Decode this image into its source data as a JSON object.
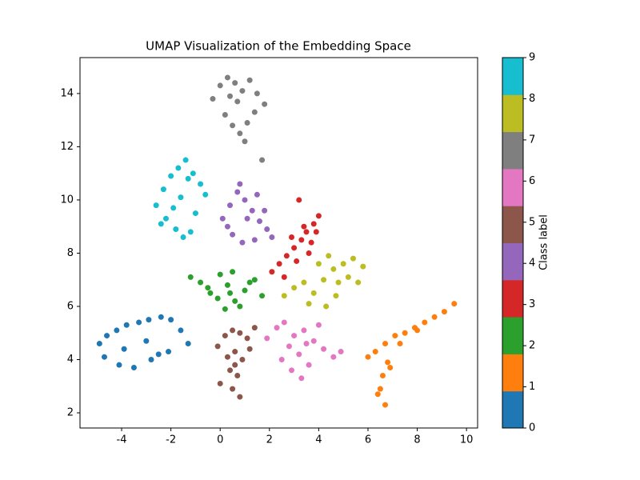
{
  "chart_data": {
    "type": "scatter",
    "title": "UMAP Visualization of the Embedding Space",
    "xlim": [
      -5.69,
      10.45
    ],
    "xticks": [
      -4,
      -2,
      0,
      2,
      4,
      6,
      8,
      10
    ],
    "ylim": [
      1.43,
      15.35
    ],
    "yticks": [
      2,
      4,
      6,
      8,
      10,
      12,
      14
    ],
    "colorbar": {
      "label": "Class label",
      "lim": [
        0,
        9
      ],
      "ticks": [
        0,
        1,
        2,
        3,
        4,
        5,
        6,
        7,
        8,
        9
      ]
    },
    "series": [
      {
        "color": "#1f77b4",
        "x": [
          -4.9,
          -4.6,
          -4.2,
          -3.8,
          -3.3,
          -2.9,
          -2.4,
          -2.0,
          -1.6,
          -1.3,
          -2.1,
          -2.8,
          -3.5,
          -4.1,
          -4.7,
          -3.9,
          -3.0,
          -2.5
        ],
        "values": [
          4.6,
          4.9,
          5.1,
          5.3,
          5.4,
          5.5,
          5.6,
          5.5,
          5.1,
          4.6,
          4.3,
          4.0,
          3.7,
          3.8,
          4.1,
          4.4,
          4.7,
          4.2
        ]
      },
      {
        "color": "#ff7f0e",
        "x": [
          6.0,
          6.3,
          6.7,
          7.1,
          7.5,
          7.9,
          8.3,
          8.7,
          9.1,
          9.5,
          6.8,
          6.6,
          6.5,
          6.7,
          6.4,
          7.3,
          8.0,
          6.9
        ],
        "values": [
          4.1,
          4.3,
          4.6,
          4.9,
          5.0,
          5.2,
          5.4,
          5.6,
          5.8,
          6.1,
          3.9,
          3.4,
          2.9,
          2.3,
          2.7,
          4.6,
          5.1,
          3.7
        ]
      },
      {
        "color": "#2ca02c",
        "x": [
          -1.2,
          -0.8,
          -0.4,
          0.0,
          0.3,
          0.6,
          1.0,
          1.4,
          1.7,
          0.2,
          0.5,
          0.8,
          -0.5,
          0.4,
          1.2,
          -0.1
        ],
        "values": [
          7.1,
          6.9,
          6.5,
          7.2,
          6.8,
          6.2,
          6.6,
          7.0,
          6.4,
          5.9,
          7.3,
          6.0,
          6.7,
          6.5,
          6.9,
          6.3
        ]
      },
      {
        "color": "#d62728",
        "x": [
          2.1,
          2.4,
          2.7,
          3.0,
          3.3,
          3.5,
          3.8,
          4.0,
          2.6,
          3.1,
          3.6,
          3.2,
          2.9,
          3.4,
          3.7,
          3.9
        ],
        "values": [
          7.3,
          7.6,
          7.9,
          8.2,
          8.5,
          8.8,
          9.1,
          9.4,
          7.1,
          7.7,
          8.0,
          10.0,
          8.6,
          9.0,
          8.4,
          8.8
        ]
      },
      {
        "color": "#9467bd",
        "x": [
          0.1,
          0.4,
          0.7,
          1.0,
          1.3,
          1.6,
          1.9,
          2.1,
          0.5,
          0.9,
          1.4,
          1.8,
          0.3,
          1.1,
          1.5,
          0.8
        ],
        "values": [
          9.3,
          9.8,
          10.3,
          10.0,
          9.6,
          9.2,
          8.9,
          8.6,
          8.7,
          8.4,
          8.5,
          9.6,
          9.0,
          9.3,
          10.2,
          10.6
        ]
      },
      {
        "color": "#8c564b",
        "x": [
          -0.1,
          0.2,
          0.5,
          0.8,
          1.1,
          1.4,
          0.3,
          0.6,
          0.9,
          0.4,
          0.7,
          0.0,
          1.2,
          0.5,
          0.8,
          0.6
        ],
        "values": [
          4.5,
          4.9,
          5.1,
          5.0,
          4.8,
          5.2,
          4.1,
          4.3,
          4.0,
          3.6,
          3.4,
          3.1,
          4.4,
          2.9,
          2.6,
          3.8
        ]
      },
      {
        "color": "#e377c2",
        "x": [
          1.9,
          2.3,
          2.6,
          3.0,
          3.4,
          3.8,
          4.2,
          4.6,
          4.9,
          2.5,
          2.9,
          3.3,
          3.6,
          2.8,
          3.2,
          4.0,
          3.5
        ],
        "values": [
          4.8,
          5.2,
          5.4,
          4.9,
          5.1,
          4.7,
          4.4,
          4.1,
          4.3,
          4.0,
          3.6,
          3.3,
          3.8,
          4.5,
          4.2,
          5.3,
          4.6
        ]
      },
      {
        "color": "#7f7f7f",
        "x": [
          -0.3,
          0.0,
          0.3,
          0.6,
          0.9,
          1.2,
          1.5,
          1.8,
          0.2,
          0.5,
          0.8,
          1.1,
          1.4,
          0.7,
          1.0,
          0.4,
          1.7
        ],
        "values": [
          13.8,
          14.3,
          14.6,
          14.4,
          14.1,
          14.5,
          14.0,
          13.6,
          13.2,
          12.8,
          12.5,
          12.9,
          13.3,
          13.7,
          12.2,
          13.9,
          11.5
        ]
      },
      {
        "color": "#bcbd22",
        "x": [
          2.6,
          3.0,
          3.4,
          3.8,
          4.2,
          4.6,
          5.0,
          5.4,
          5.8,
          4.0,
          4.4,
          4.8,
          5.2,
          3.6,
          4.7,
          5.6,
          4.3
        ],
        "values": [
          6.4,
          6.7,
          6.9,
          6.5,
          7.0,
          7.4,
          7.6,
          7.8,
          7.5,
          7.6,
          7.9,
          6.9,
          7.1,
          6.1,
          6.4,
          6.9,
          6.0
        ]
      },
      {
        "color": "#17becf",
        "x": [
          -2.6,
          -2.3,
          -2.0,
          -1.7,
          -1.4,
          -1.1,
          -0.8,
          -0.6,
          -2.2,
          -1.8,
          -1.5,
          -1.2,
          -1.9,
          -1.6,
          -1.0,
          -2.4,
          -1.3
        ],
        "values": [
          9.8,
          10.4,
          10.9,
          11.2,
          11.5,
          11.0,
          10.6,
          10.2,
          9.3,
          8.9,
          8.6,
          8.8,
          9.7,
          10.1,
          9.5,
          9.1,
          10.8
        ]
      }
    ]
  }
}
